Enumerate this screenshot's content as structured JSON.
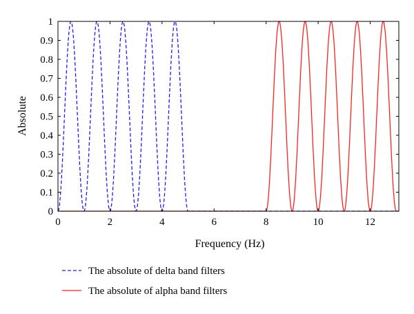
{
  "chart_data": {
    "type": "line",
    "title": "",
    "xlabel": "Frequency (Hz)",
    "ylabel": "Absolute",
    "xlim": [
      0,
      13.1
    ],
    "ylim": [
      0,
      1
    ],
    "xticks": [
      0,
      2,
      4,
      6,
      8,
      10,
      12
    ],
    "yticks": [
      0,
      0.1,
      0.2,
      0.3,
      0.4,
      0.5,
      0.6,
      0.7,
      0.8,
      0.9,
      1
    ],
    "xtick_labels": [
      "0",
      "2",
      "4",
      "6",
      "8",
      "10",
      "12"
    ],
    "ytick_labels": [
      "0",
      "0.1",
      "0.2",
      "0.3",
      "0.4",
      "0.5",
      "0.6",
      "0.7",
      "0.8",
      "0.9",
      "1"
    ],
    "grid": false,
    "legend_position": "bottom-left, outside axes",
    "series": [
      {
        "name": "The absolute of delta band filters",
        "color": "#1a1aff",
        "style": "dashed",
        "peak_centers": [
          0.5,
          1.5,
          2.5,
          3.5,
          4.5
        ],
        "peak_width": 1,
        "peak_height": 1,
        "x_range": [
          0,
          5
        ]
      },
      {
        "name": "The absolute of alpha band filters",
        "color": "#ff2020",
        "style": "solid",
        "peak_centers": [
          8.5,
          9.5,
          10.5,
          11.5,
          12.5
        ],
        "peak_width": 1,
        "peak_height": 1,
        "x_range": [
          8,
          13
        ]
      }
    ]
  }
}
